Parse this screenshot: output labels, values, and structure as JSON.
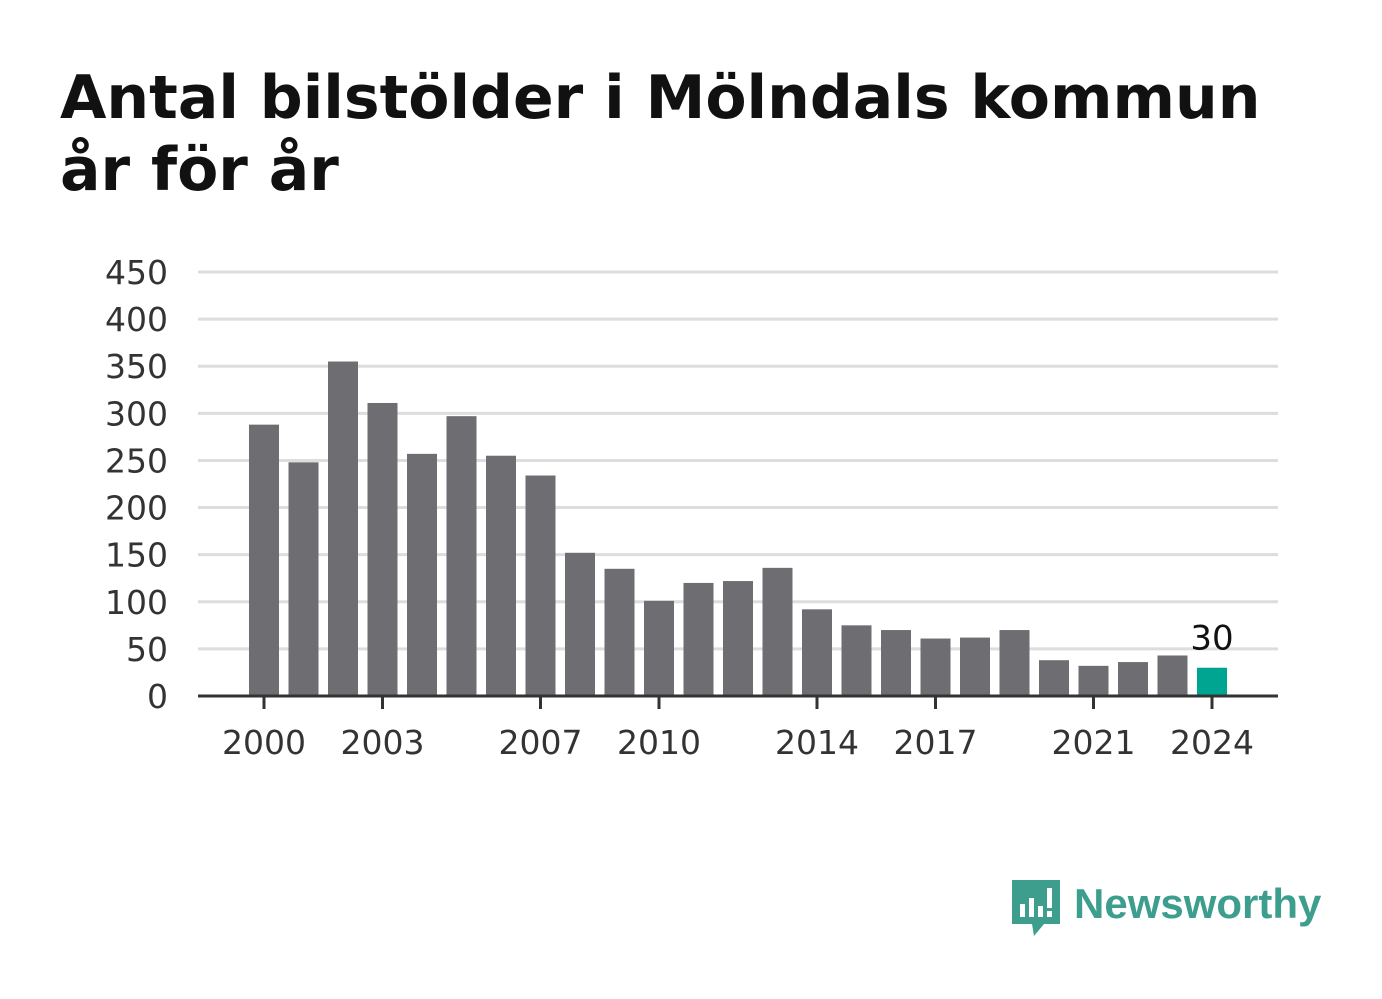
{
  "chart_data": {
    "type": "bar",
    "title": "Antal bilstölder i Mölndals kommun år för år",
    "categories": [
      "2000",
      "2001",
      "2002",
      "2003",
      "2004",
      "2005",
      "2006",
      "2007",
      "2008",
      "2009",
      "2010",
      "2011",
      "2012",
      "2013",
      "2014",
      "2015",
      "2016",
      "2017",
      "2018",
      "2019",
      "2020",
      "2021",
      "2022",
      "2023",
      "2024"
    ],
    "values": [
      288,
      248,
      355,
      311,
      257,
      297,
      255,
      234,
      152,
      135,
      101,
      120,
      122,
      136,
      92,
      75,
      70,
      61,
      62,
      70,
      38,
      32,
      36,
      43,
      30
    ],
    "x_tick_labels": [
      "2000",
      "2003",
      "2007",
      "2010",
      "2014",
      "2017",
      "2021",
      "2024"
    ],
    "y_ticks": [
      0,
      50,
      100,
      150,
      200,
      250,
      300,
      350,
      400,
      450
    ],
    "ylim": [
      0,
      450
    ],
    "highlight": {
      "category": "2024",
      "label": "30"
    },
    "grid": true,
    "colors": {
      "bar": "#6e6d72",
      "highlight": "#00a591",
      "grid": "#dddddd",
      "axis": "#333333"
    }
  },
  "branding": {
    "name": "Newsworthy",
    "icon": "newsworthy-logo-icon",
    "color": "#3e9e8e"
  }
}
